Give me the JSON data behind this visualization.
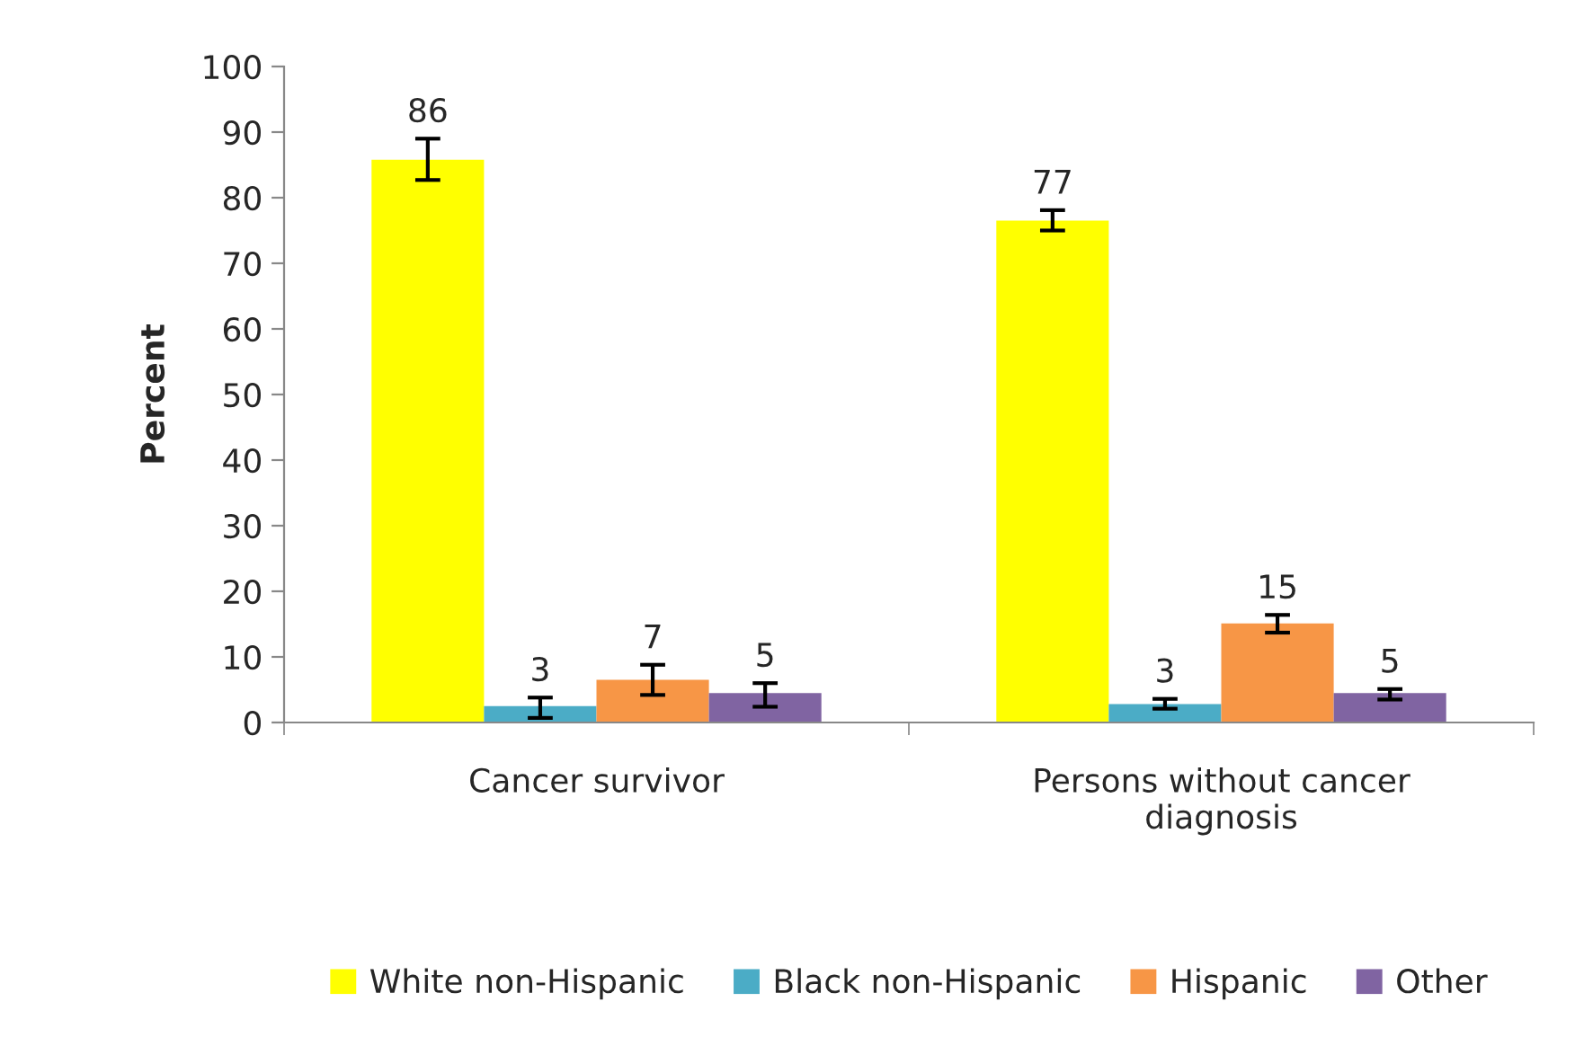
{
  "chart_data": {
    "type": "bar",
    "ylabel": "Percent",
    "categories": [
      "Cancer survivor",
      "Persons without cancer\ndiagnosis"
    ],
    "series": [
      {
        "name": "White non-Hispanic",
        "color": "#ffff00",
        "values": [
          85.8,
          76.5
        ],
        "value_labels": [
          "86",
          "77"
        ],
        "errors": [
          [
            82.7,
            89.0
          ],
          [
            75.0,
            78.1
          ]
        ]
      },
      {
        "name": "Black non-Hispanic",
        "color": "#4bacc6",
        "values": [
          2.5,
          2.8
        ],
        "value_labels": [
          "3",
          "3"
        ],
        "errors": [
          [
            0.7,
            3.8
          ],
          [
            2.1,
            3.6
          ]
        ]
      },
      {
        "name": "Hispanic",
        "color": "#f79646",
        "values": [
          6.5,
          15.1
        ],
        "value_labels": [
          "7",
          "15"
        ],
        "errors": [
          [
            4.2,
            8.8
          ],
          [
            13.7,
            16.4
          ]
        ]
      },
      {
        "name": "Other",
        "color": "#8064a2",
        "values": [
          4.5,
          4.5
        ],
        "value_labels": [
          "5",
          "5"
        ],
        "errors": [
          [
            2.4,
            6.0
          ],
          [
            3.5,
            5.1
          ]
        ]
      }
    ],
    "ylim": [
      0,
      100
    ],
    "yticks": [
      0,
      10,
      20,
      30,
      40,
      50,
      60,
      70,
      80,
      90,
      100
    ],
    "grid": false,
    "legend": "bottom"
  }
}
